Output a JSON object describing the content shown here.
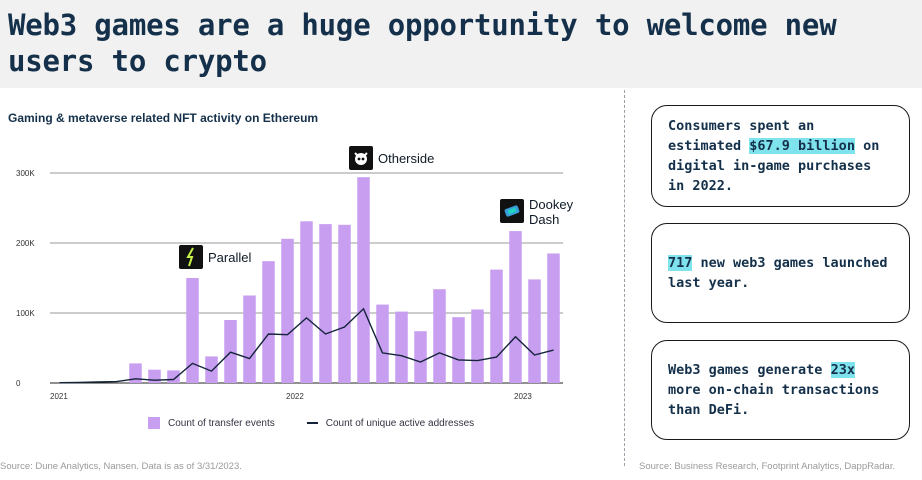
{
  "page": {
    "title": "Web3 games are a huge opportunity to welcome new users to crypto",
    "source_left": "Source: Dune Analytics, Nansen. Data is as of 3/31/2023.",
    "source_right": "Source: Business Research, Footprint Analytics, DappRadar."
  },
  "chart_data": {
    "type": "bar",
    "title": "Gaming & metaverse related NFT activity on Ethereum",
    "ylim": [
      0,
      320000
    ],
    "yticks": [
      0,
      100000,
      200000,
      300000
    ],
    "ytick_labels": [
      "0",
      "100K",
      "200K",
      "300K"
    ],
    "xtick_labels": [
      {
        "label": "2021",
        "index": 0
      },
      {
        "label": "2022",
        "index": 12
      },
      {
        "label": "2023",
        "index": 24
      }
    ],
    "categories": [
      "2021-01",
      "2021-02",
      "2021-03",
      "2021-04",
      "2021-05",
      "2021-06",
      "2021-07",
      "2021-08",
      "2021-09",
      "2021-10",
      "2021-11",
      "2021-12",
      "2022-01",
      "2022-02",
      "2022-03",
      "2022-04",
      "2022-05",
      "2022-06",
      "2022-07",
      "2022-08",
      "2022-09",
      "2022-10",
      "2022-11",
      "2022-12",
      "2023-01",
      "2023-02",
      "2023-03"
    ],
    "series": [
      {
        "name": "Count of transfer events",
        "kind": "bar",
        "color": "#c89ef0",
        "values": [
          0,
          0,
          0,
          0,
          28000,
          19000,
          18000,
          150000,
          38000,
          90000,
          125000,
          174000,
          206000,
          231000,
          227000,
          226000,
          294000,
          112000,
          102000,
          74000,
          134000,
          94000,
          105000,
          162000,
          217000,
          148000,
          185000
        ]
      },
      {
        "name": "Count of unique active addresses",
        "kind": "line",
        "color": "#14233a",
        "values": [
          500,
          800,
          1500,
          2000,
          6000,
          4000,
          5000,
          28000,
          17000,
          44000,
          35000,
          70000,
          69000,
          93000,
          70000,
          80000,
          106000,
          43000,
          39000,
          30000,
          43000,
          33000,
          32000,
          37000,
          66000,
          40000,
          47000
        ]
      }
    ],
    "annotations": [
      {
        "label": "Parallel",
        "index": 7
      },
      {
        "label": "Otherside",
        "index": 16
      },
      {
        "label": "Dookey Dash",
        "index": 24
      }
    ]
  },
  "annotations": {
    "parallel": "Parallel",
    "otherside": "Otherside",
    "dookey": "Dookey Dash"
  },
  "stats": [
    {
      "pre": "Consumers spent an estimated ",
      "highlight": "$67.9 billion",
      "post": " on digital in-game purchases in 2022."
    },
    {
      "pre": "",
      "highlight": "717",
      "post": " new web3 games launched last year."
    },
    {
      "pre": "Web3 games generate ",
      "highlight": "23x",
      "post": " more on-chain transactions than DeFi."
    }
  ],
  "colors": {
    "bar": "#c89ef0",
    "line": "#14233a",
    "highlight": "#7fe3ee",
    "title": "#14304a"
  },
  "icons": {
    "parallel": "parallel-logo-icon",
    "otherside": "otherside-logo-icon",
    "dookey": "dookey-dash-logo-icon"
  }
}
